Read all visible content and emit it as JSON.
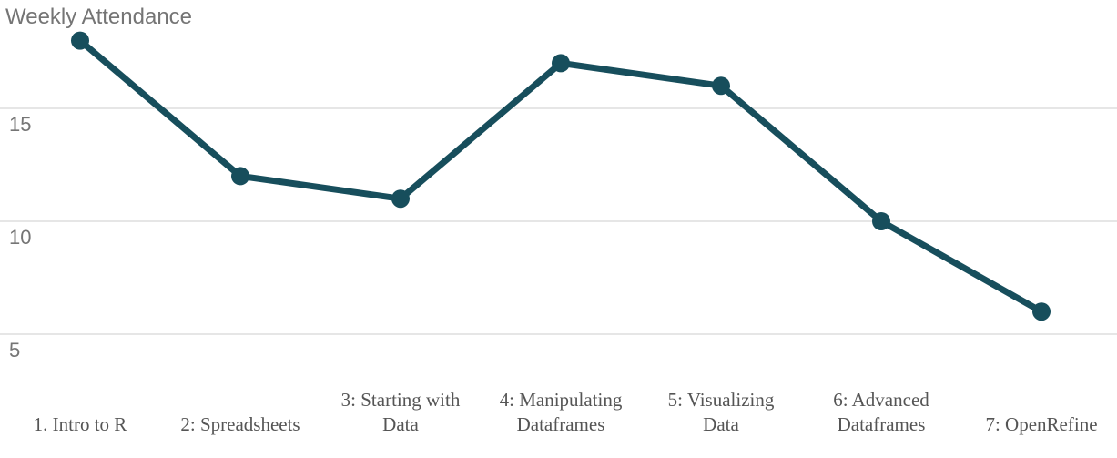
{
  "chart_data": {
    "type": "line",
    "title": "Weekly Attendance",
    "categories": [
      "1. Intro to R",
      "2: Spreadsheets",
      "3: Starting with Data",
      "4: Manipulating Dataframes",
      "5: Visualizing Data",
      "6: Advanced Dataframes",
      "7: OpenRefine"
    ],
    "category_lines": [
      [
        "1. Intro to R"
      ],
      [
        "2: Spreadsheets"
      ],
      [
        "3: Starting with",
        "Data"
      ],
      [
        "4: Manipulating",
        "Dataframes"
      ],
      [
        "5: Visualizing",
        "Data"
      ],
      [
        "6: Advanced",
        "Dataframes"
      ],
      [
        "7: OpenRefine"
      ]
    ],
    "series": [
      {
        "values": [
          18,
          12,
          11,
          17,
          16,
          10,
          6
        ],
        "color": "#174e5c"
      }
    ],
    "yticks": [
      5,
      10,
      15
    ],
    "ylim": [
      4.5,
      19
    ],
    "grid": true,
    "legend": "none",
    "xlabel": "",
    "ylabel": ""
  }
}
